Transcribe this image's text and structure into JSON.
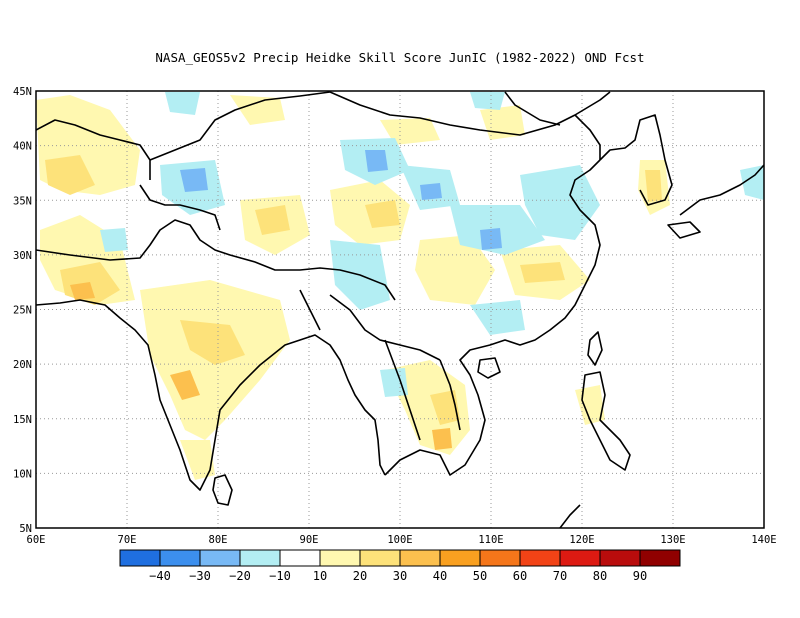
{
  "title": "NASA_GEOS5v2 Precip Heidke Skill Score JunIC (1982-2022) OND Fcst",
  "map": {
    "lon_range": [
      60,
      140
    ],
    "lat_range": [
      5,
      45
    ],
    "lon_ticks": [
      "60E",
      "70E",
      "80E",
      "90E",
      "100E",
      "110E",
      "120E",
      "130E",
      "140E"
    ],
    "lat_ticks": [
      "5N",
      "10N",
      "15N",
      "20N",
      "25N",
      "30N",
      "35N",
      "40N",
      "45N"
    ],
    "grid": "dotted"
  },
  "colorbar": {
    "colors": [
      "#1f6fe0",
      "#3c8fee",
      "#78b9f5",
      "#b3eef3",
      "#ffffff",
      "#fff8b0",
      "#fde27a",
      "#fcc04e",
      "#f9a020",
      "#f5761a",
      "#f24316",
      "#dd1a12",
      "#b90c0c",
      "#900000"
    ],
    "labels": [
      "-40",
      "-30",
      "-20",
      "-10",
      "10",
      "20",
      "30",
      "40",
      "50",
      "60",
      "70",
      "80",
      "90"
    ]
  }
}
